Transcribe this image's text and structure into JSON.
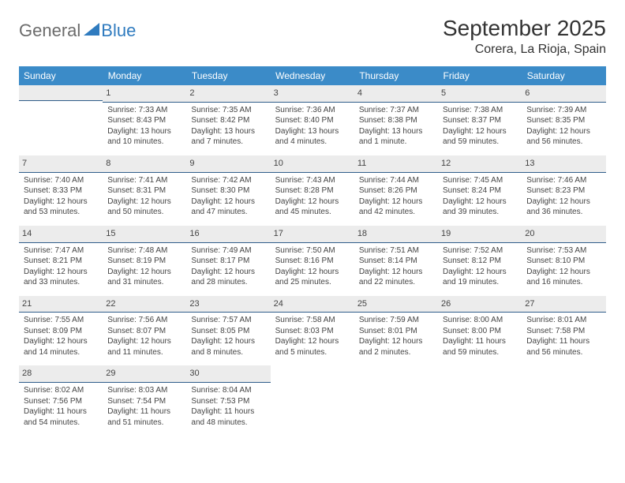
{
  "logo": {
    "text1": "General",
    "text2": "Blue"
  },
  "title": "September 2025",
  "location": "Corera, La Rioja, Spain",
  "colors": {
    "header_bg": "#3b8bc8",
    "header_text": "#ffffff",
    "numbar_bg": "#ececec",
    "numbar_border": "#2f5d8a",
    "body_text": "#444444",
    "logo_gray": "#6b6b6b",
    "logo_blue": "#2f7bbf"
  },
  "day_names": [
    "Sunday",
    "Monday",
    "Tuesday",
    "Wednesday",
    "Thursday",
    "Friday",
    "Saturday"
  ],
  "weeks": [
    [
      {
        "empty": true
      },
      {
        "num": "1",
        "sunrise": "Sunrise: 7:33 AM",
        "sunset": "Sunset: 8:43 PM",
        "daylight": "Daylight: 13 hours and 10 minutes."
      },
      {
        "num": "2",
        "sunrise": "Sunrise: 7:35 AM",
        "sunset": "Sunset: 8:42 PM",
        "daylight": "Daylight: 13 hours and 7 minutes."
      },
      {
        "num": "3",
        "sunrise": "Sunrise: 7:36 AM",
        "sunset": "Sunset: 8:40 PM",
        "daylight": "Daylight: 13 hours and 4 minutes."
      },
      {
        "num": "4",
        "sunrise": "Sunrise: 7:37 AM",
        "sunset": "Sunset: 8:38 PM",
        "daylight": "Daylight: 13 hours and 1 minute."
      },
      {
        "num": "5",
        "sunrise": "Sunrise: 7:38 AM",
        "sunset": "Sunset: 8:37 PM",
        "daylight": "Daylight: 12 hours and 59 minutes."
      },
      {
        "num": "6",
        "sunrise": "Sunrise: 7:39 AM",
        "sunset": "Sunset: 8:35 PM",
        "daylight": "Daylight: 12 hours and 56 minutes."
      }
    ],
    [
      {
        "num": "7",
        "sunrise": "Sunrise: 7:40 AM",
        "sunset": "Sunset: 8:33 PM",
        "daylight": "Daylight: 12 hours and 53 minutes."
      },
      {
        "num": "8",
        "sunrise": "Sunrise: 7:41 AM",
        "sunset": "Sunset: 8:31 PM",
        "daylight": "Daylight: 12 hours and 50 minutes."
      },
      {
        "num": "9",
        "sunrise": "Sunrise: 7:42 AM",
        "sunset": "Sunset: 8:30 PM",
        "daylight": "Daylight: 12 hours and 47 minutes."
      },
      {
        "num": "10",
        "sunrise": "Sunrise: 7:43 AM",
        "sunset": "Sunset: 8:28 PM",
        "daylight": "Daylight: 12 hours and 45 minutes."
      },
      {
        "num": "11",
        "sunrise": "Sunrise: 7:44 AM",
        "sunset": "Sunset: 8:26 PM",
        "daylight": "Daylight: 12 hours and 42 minutes."
      },
      {
        "num": "12",
        "sunrise": "Sunrise: 7:45 AM",
        "sunset": "Sunset: 8:24 PM",
        "daylight": "Daylight: 12 hours and 39 minutes."
      },
      {
        "num": "13",
        "sunrise": "Sunrise: 7:46 AM",
        "sunset": "Sunset: 8:23 PM",
        "daylight": "Daylight: 12 hours and 36 minutes."
      }
    ],
    [
      {
        "num": "14",
        "sunrise": "Sunrise: 7:47 AM",
        "sunset": "Sunset: 8:21 PM",
        "daylight": "Daylight: 12 hours and 33 minutes."
      },
      {
        "num": "15",
        "sunrise": "Sunrise: 7:48 AM",
        "sunset": "Sunset: 8:19 PM",
        "daylight": "Daylight: 12 hours and 31 minutes."
      },
      {
        "num": "16",
        "sunrise": "Sunrise: 7:49 AM",
        "sunset": "Sunset: 8:17 PM",
        "daylight": "Daylight: 12 hours and 28 minutes."
      },
      {
        "num": "17",
        "sunrise": "Sunrise: 7:50 AM",
        "sunset": "Sunset: 8:16 PM",
        "daylight": "Daylight: 12 hours and 25 minutes."
      },
      {
        "num": "18",
        "sunrise": "Sunrise: 7:51 AM",
        "sunset": "Sunset: 8:14 PM",
        "daylight": "Daylight: 12 hours and 22 minutes."
      },
      {
        "num": "19",
        "sunrise": "Sunrise: 7:52 AM",
        "sunset": "Sunset: 8:12 PM",
        "daylight": "Daylight: 12 hours and 19 minutes."
      },
      {
        "num": "20",
        "sunrise": "Sunrise: 7:53 AM",
        "sunset": "Sunset: 8:10 PM",
        "daylight": "Daylight: 12 hours and 16 minutes."
      }
    ],
    [
      {
        "num": "21",
        "sunrise": "Sunrise: 7:55 AM",
        "sunset": "Sunset: 8:09 PM",
        "daylight": "Daylight: 12 hours and 14 minutes."
      },
      {
        "num": "22",
        "sunrise": "Sunrise: 7:56 AM",
        "sunset": "Sunset: 8:07 PM",
        "daylight": "Daylight: 12 hours and 11 minutes."
      },
      {
        "num": "23",
        "sunrise": "Sunrise: 7:57 AM",
        "sunset": "Sunset: 8:05 PM",
        "daylight": "Daylight: 12 hours and 8 minutes."
      },
      {
        "num": "24",
        "sunrise": "Sunrise: 7:58 AM",
        "sunset": "Sunset: 8:03 PM",
        "daylight": "Daylight: 12 hours and 5 minutes."
      },
      {
        "num": "25",
        "sunrise": "Sunrise: 7:59 AM",
        "sunset": "Sunset: 8:01 PM",
        "daylight": "Daylight: 12 hours and 2 minutes."
      },
      {
        "num": "26",
        "sunrise": "Sunrise: 8:00 AM",
        "sunset": "Sunset: 8:00 PM",
        "daylight": "Daylight: 11 hours and 59 minutes."
      },
      {
        "num": "27",
        "sunrise": "Sunrise: 8:01 AM",
        "sunset": "Sunset: 7:58 PM",
        "daylight": "Daylight: 11 hours and 56 minutes."
      }
    ],
    [
      {
        "num": "28",
        "sunrise": "Sunrise: 8:02 AM",
        "sunset": "Sunset: 7:56 PM",
        "daylight": "Daylight: 11 hours and 54 minutes."
      },
      {
        "num": "29",
        "sunrise": "Sunrise: 8:03 AM",
        "sunset": "Sunset: 7:54 PM",
        "daylight": "Daylight: 11 hours and 51 minutes."
      },
      {
        "num": "30",
        "sunrise": "Sunrise: 8:04 AM",
        "sunset": "Sunset: 7:53 PM",
        "daylight": "Daylight: 11 hours and 48 minutes."
      },
      {
        "blank": true
      },
      {
        "blank": true
      },
      {
        "blank": true
      },
      {
        "blank": true
      }
    ]
  ]
}
